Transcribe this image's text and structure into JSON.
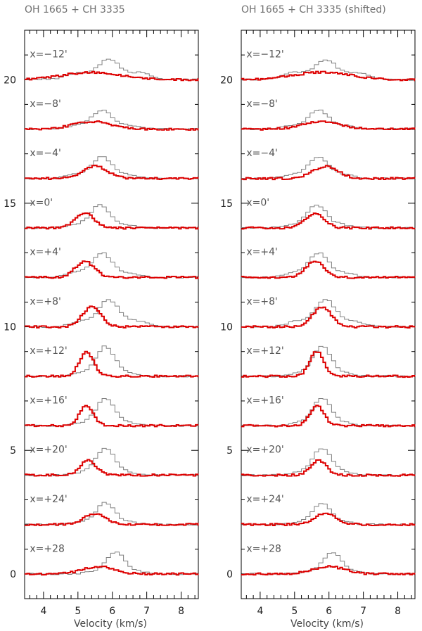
{
  "chart_data": [
    {
      "type": "line",
      "title": "OH 1665 + CH 3335",
      "xlabel": "Velocity (km/s)",
      "ylabel": "",
      "xlim": [
        3.45,
        8.5
      ],
      "ylim": [
        -1,
        22
      ],
      "xticks": [
        4,
        5,
        6,
        7,
        8
      ],
      "yticks": [
        0,
        5,
        10,
        15,
        20
      ],
      "grid": false,
      "colors": {
        "oh": "#808080",
        "ch": "#dd0000"
      },
      "offsets": [
        {
          "label": "x=−12'",
          "baseline": 20,
          "oh_peak": 0.75,
          "oh_center": 5.9,
          "oh_width": 1.4,
          "ch_peak": 0.3,
          "ch_center": 5.4,
          "ch_width": 1.8
        },
        {
          "label": "x=−8'",
          "baseline": 18,
          "oh_peak": 0.7,
          "oh_center": 5.7,
          "oh_width": 1.0,
          "ch_peak": 0.3,
          "ch_center": 5.4,
          "ch_width": 1.2
        },
        {
          "label": "x=−4'",
          "baseline": 16,
          "oh_peak": 0.8,
          "oh_center": 5.7,
          "oh_width": 1.0,
          "ch_peak": 0.5,
          "ch_center": 5.5,
          "ch_width": 0.8
        },
        {
          "label": "x=0'",
          "baseline": 14,
          "oh_peak": 0.85,
          "oh_center": 5.65,
          "oh_width": 0.9,
          "ch_peak": 0.6,
          "ch_center": 5.2,
          "ch_width": 0.6
        },
        {
          "label": "x=+4'",
          "baseline": 12,
          "oh_peak": 0.9,
          "oh_center": 5.7,
          "oh_width": 1.0,
          "ch_peak": 0.65,
          "ch_center": 5.2,
          "ch_width": 0.6
        },
        {
          "label": "x=+8'",
          "baseline": 10,
          "oh_peak": 1.0,
          "oh_center": 5.9,
          "oh_width": 1.1,
          "ch_peak": 0.8,
          "ch_center": 5.4,
          "ch_width": 0.6
        },
        {
          "label": "x=+12'",
          "baseline": 8,
          "oh_peak": 1.1,
          "oh_center": 5.8,
          "oh_width": 0.8,
          "ch_peak": 1.0,
          "ch_center": 5.25,
          "ch_width": 0.45
        },
        {
          "label": "x=+16'",
          "baseline": 6,
          "oh_peak": 1.0,
          "oh_center": 5.8,
          "oh_width": 0.8,
          "ch_peak": 0.8,
          "ch_center": 5.25,
          "ch_width": 0.45
        },
        {
          "label": "x=+20'",
          "baseline": 4,
          "oh_peak": 1.0,
          "oh_center": 5.8,
          "oh_width": 0.8,
          "ch_peak": 0.6,
          "ch_center": 5.3,
          "ch_width": 0.5
        },
        {
          "label": "x=+24'",
          "baseline": 2,
          "oh_peak": 0.8,
          "oh_center": 5.8,
          "oh_width": 0.8,
          "ch_peak": 0.45,
          "ch_center": 5.5,
          "ch_width": 0.7
        },
        {
          "label": "x=+28",
          "baseline": 0,
          "oh_peak": 0.8,
          "oh_center": 6.1,
          "oh_width": 0.8,
          "ch_peak": 0.3,
          "ch_center": 5.6,
          "ch_width": 1.0
        }
      ]
    },
    {
      "type": "line",
      "title": "OH 1665 + CH 3335 (shifted)",
      "xlabel": "Velocity (km/s)",
      "ylabel": "",
      "xlim": [
        3.45,
        8.5
      ],
      "ylim": [
        -1,
        22
      ],
      "xticks": [
        4,
        5,
        6,
        7,
        8
      ],
      "yticks": [
        0,
        5,
        10,
        15,
        20
      ],
      "grid": false,
      "colors": {
        "oh": "#808080",
        "ch": "#dd0000"
      },
      "offsets": [
        {
          "label": "x=−12'",
          "baseline": 20,
          "oh_peak": 0.75,
          "oh_center": 5.9,
          "oh_width": 1.4,
          "ch_peak": 0.3,
          "ch_center": 5.8,
          "ch_width": 1.8
        },
        {
          "label": "x=−8'",
          "baseline": 18,
          "oh_peak": 0.7,
          "oh_center": 5.7,
          "oh_width": 1.0,
          "ch_peak": 0.3,
          "ch_center": 5.8,
          "ch_width": 1.2
        },
        {
          "label": "x=−4'",
          "baseline": 16,
          "oh_peak": 0.8,
          "oh_center": 5.7,
          "oh_width": 1.0,
          "ch_peak": 0.5,
          "ch_center": 5.9,
          "ch_width": 0.8
        },
        {
          "label": "x=0'",
          "baseline": 14,
          "oh_peak": 0.85,
          "oh_center": 5.65,
          "oh_width": 0.9,
          "ch_peak": 0.6,
          "ch_center": 5.6,
          "ch_width": 0.6
        },
        {
          "label": "x=+4'",
          "baseline": 12,
          "oh_peak": 0.9,
          "oh_center": 5.7,
          "oh_width": 1.0,
          "ch_peak": 0.65,
          "ch_center": 5.6,
          "ch_width": 0.6
        },
        {
          "label": "x=+8'",
          "baseline": 10,
          "oh_peak": 1.0,
          "oh_center": 5.9,
          "oh_width": 1.1,
          "ch_peak": 0.8,
          "ch_center": 5.8,
          "ch_width": 0.6
        },
        {
          "label": "x=+12'",
          "baseline": 8,
          "oh_peak": 1.1,
          "oh_center": 5.8,
          "oh_width": 0.8,
          "ch_peak": 1.0,
          "ch_center": 5.65,
          "ch_width": 0.45
        },
        {
          "label": "x=+16'",
          "baseline": 6,
          "oh_peak": 1.0,
          "oh_center": 5.8,
          "oh_width": 0.8,
          "ch_peak": 0.8,
          "ch_center": 5.65,
          "ch_width": 0.45
        },
        {
          "label": "x=+20'",
          "baseline": 4,
          "oh_peak": 1.0,
          "oh_center": 5.8,
          "oh_width": 0.8,
          "ch_peak": 0.6,
          "ch_center": 5.7,
          "ch_width": 0.5
        },
        {
          "label": "x=+24'",
          "baseline": 2,
          "oh_peak": 0.8,
          "oh_center": 5.8,
          "oh_width": 0.8,
          "ch_peak": 0.45,
          "ch_center": 5.9,
          "ch_width": 0.7
        },
        {
          "label": "x=+28",
          "baseline": 0,
          "oh_peak": 0.8,
          "oh_center": 6.1,
          "oh_width": 0.8,
          "ch_peak": 0.3,
          "ch_center": 6.0,
          "ch_width": 1.0
        }
      ]
    }
  ]
}
